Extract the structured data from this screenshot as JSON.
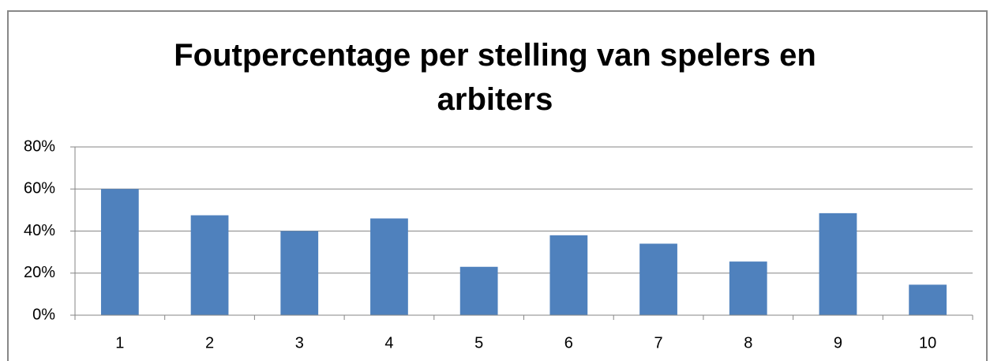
{
  "chart_data": {
    "type": "bar",
    "title": "Foutpercentage per stelling van spelers en arbiters",
    "categories": [
      "1",
      "2",
      "3",
      "4",
      "5",
      "6",
      "7",
      "8",
      "9",
      "10"
    ],
    "values": [
      60,
      47.5,
      40,
      46,
      23,
      38,
      34,
      25.5,
      48.5,
      14.5
    ],
    "color": "#4f81bd",
    "ylim": [
      0,
      80
    ],
    "yticks": [
      {
        "value": 0,
        "label": "0%"
      },
      {
        "value": 20,
        "label": "20%"
      },
      {
        "value": 40,
        "label": "40%"
      },
      {
        "value": 60,
        "label": "60%"
      },
      {
        "value": 80,
        "label": "80%"
      }
    ],
    "grid": true
  }
}
